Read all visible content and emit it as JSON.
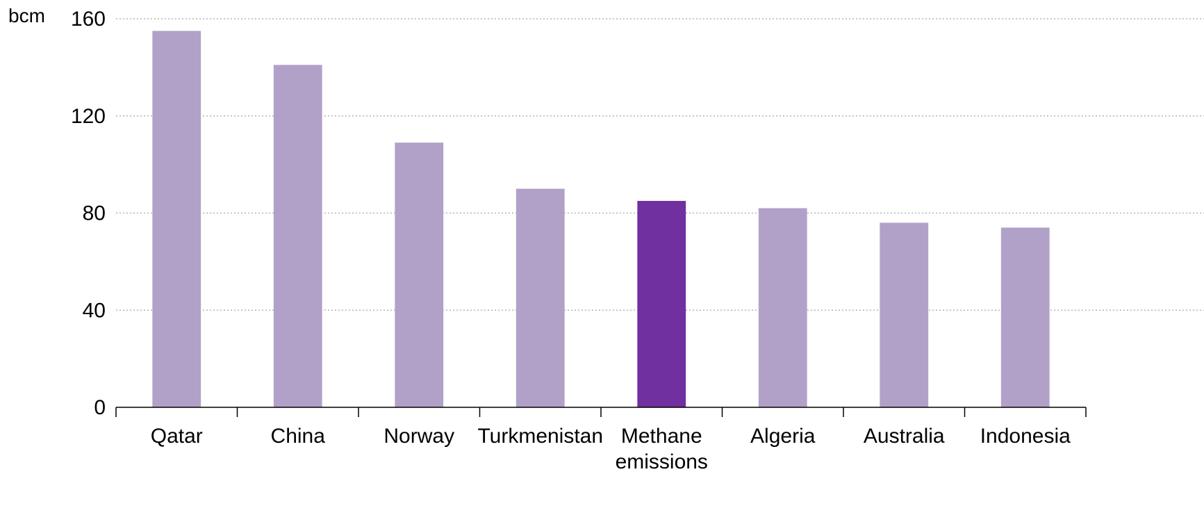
{
  "chart_data": {
    "type": "bar",
    "title": "",
    "xlabel": "",
    "ylabel": "bcm",
    "ylim": [
      0,
      160
    ],
    "yticks": [
      0,
      40,
      80,
      120,
      160
    ],
    "grid": true,
    "categories": [
      "Qatar",
      "China",
      "Norway",
      "Turkmenistan",
      "Methane emissions",
      "Algeria",
      "Australia",
      "Indonesia"
    ],
    "category_lines": [
      [
        "Qatar"
      ],
      [
        "China"
      ],
      [
        "Norway"
      ],
      [
        "Turkmenistan"
      ],
      [
        "Methane",
        "emissions"
      ],
      [
        "Algeria"
      ],
      [
        "Australia"
      ],
      [
        "Indonesia"
      ]
    ],
    "values": [
      155,
      141,
      109,
      90,
      85,
      82,
      76,
      74
    ],
    "highlight_index": 4,
    "colors": {
      "bar": "#b1a1c8",
      "highlight": "#7030a0",
      "grid": "#b3b3b3",
      "axis": "#000000"
    }
  }
}
